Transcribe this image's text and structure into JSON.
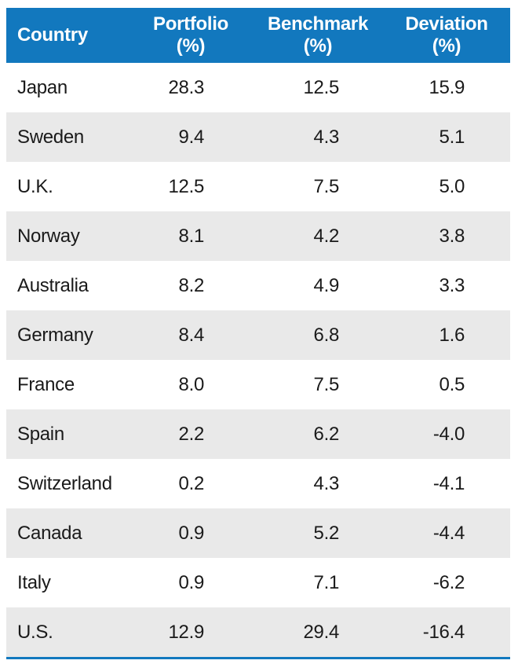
{
  "colors": {
    "header_bg": "#1278be",
    "header_text": "#ffffff",
    "stripe_bg": "#e9e9e9",
    "text": "#1a1a1a",
    "bottom_rule": "#1278be"
  },
  "table": {
    "columns": [
      {
        "label": "Country",
        "unit": ""
      },
      {
        "label": "Portfolio",
        "unit": "(%)"
      },
      {
        "label": "Benchmark",
        "unit": "(%)"
      },
      {
        "label": "Deviation",
        "unit": "(%)"
      }
    ],
    "rows": [
      {
        "country": "Japan",
        "portfolio": "28.3",
        "benchmark": "12.5",
        "deviation": "15.9"
      },
      {
        "country": "Sweden",
        "portfolio": "9.4",
        "benchmark": "4.3",
        "deviation": "5.1"
      },
      {
        "country": "U.K.",
        "portfolio": "12.5",
        "benchmark": "7.5",
        "deviation": "5.0"
      },
      {
        "country": "Norway",
        "portfolio": "8.1",
        "benchmark": "4.2",
        "deviation": "3.8"
      },
      {
        "country": "Australia",
        "portfolio": "8.2",
        "benchmark": "4.9",
        "deviation": "3.3"
      },
      {
        "country": "Germany",
        "portfolio": "8.4",
        "benchmark": "6.8",
        "deviation": "1.6"
      },
      {
        "country": "France",
        "portfolio": "8.0",
        "benchmark": "7.5",
        "deviation": "0.5"
      },
      {
        "country": "Spain",
        "portfolio": "2.2",
        "benchmark": "6.2",
        "deviation": "-4.0"
      },
      {
        "country": "Switzerland",
        "portfolio": "0.2",
        "benchmark": "4.3",
        "deviation": "-4.1"
      },
      {
        "country": "Canada",
        "portfolio": "0.9",
        "benchmark": "5.2",
        "deviation": "-4.4"
      },
      {
        "country": "Italy",
        "portfolio": "0.9",
        "benchmark": "7.1",
        "deviation": "-6.2"
      },
      {
        "country": "U.S.",
        "portfolio": "12.9",
        "benchmark": "29.4",
        "deviation": "-16.4"
      }
    ]
  },
  "chart_data": {
    "type": "table",
    "title": "",
    "columns": [
      "Country",
      "Portfolio (%)",
      "Benchmark (%)",
      "Deviation (%)"
    ],
    "rows": [
      [
        "Japan",
        28.3,
        12.5,
        15.9
      ],
      [
        "Sweden",
        9.4,
        4.3,
        5.1
      ],
      [
        "U.K.",
        12.5,
        7.5,
        5.0
      ],
      [
        "Norway",
        8.1,
        4.2,
        3.8
      ],
      [
        "Australia",
        8.2,
        4.9,
        3.3
      ],
      [
        "Germany",
        8.4,
        6.8,
        1.6
      ],
      [
        "France",
        8.0,
        7.5,
        0.5
      ],
      [
        "Spain",
        2.2,
        6.2,
        -4.0
      ],
      [
        "Switzerland",
        0.2,
        4.3,
        -4.1
      ],
      [
        "Canada",
        0.9,
        5.2,
        -4.4
      ],
      [
        "Italy",
        0.9,
        7.1,
        -6.2
      ],
      [
        "U.S.",
        12.9,
        29.4,
        -16.4
      ]
    ]
  }
}
